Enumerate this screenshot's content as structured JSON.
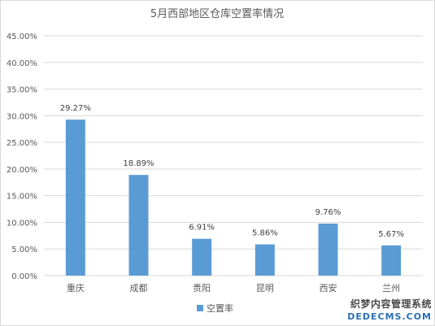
{
  "chart_data": {
    "type": "bar",
    "title": "5月西部地区仓库空置率情况",
    "categories": [
      "重庆",
      "成都",
      "贵阳",
      "昆明",
      "西安",
      "兰州"
    ],
    "series": [
      {
        "name": "空置率",
        "values": [
          29.27,
          18.89,
          6.91,
          5.86,
          9.76,
          5.67
        ],
        "labels": [
          "29.27%",
          "18.89%",
          "6.91%",
          "5.86%",
          "9.76%",
          "5.67%"
        ],
        "color": "#5b9bd5"
      }
    ],
    "ylim": [
      0,
      45
    ],
    "y_ticks": [
      "0.00%",
      "5.00%",
      "10.00%",
      "15.00%",
      "20.00%",
      "25.00%",
      "30.00%",
      "35.00%",
      "40.00%",
      "45.00%"
    ],
    "y_tick_values": [
      0,
      5,
      10,
      15,
      20,
      25,
      30,
      35,
      40,
      45
    ],
    "grid": true,
    "grid_color": "#d9d9d9",
    "legend_position": "bottom"
  },
  "watermark": {
    "line1": "织梦内容管理系统",
    "line2": "DEDECMS.COM"
  }
}
